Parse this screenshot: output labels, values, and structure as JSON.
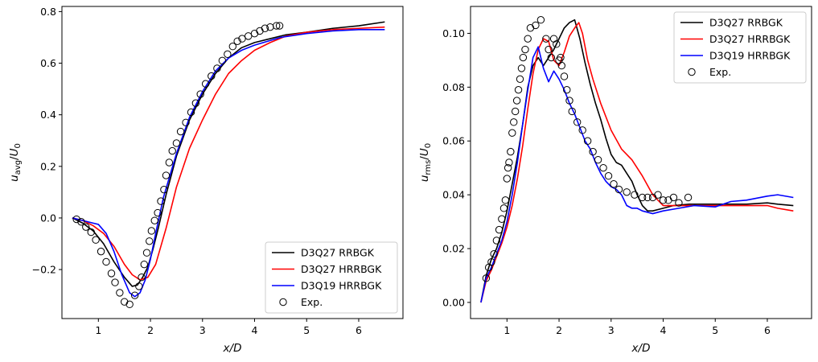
{
  "colors": {
    "rrbgk27": "#000000",
    "hrrbgk27": "#ff0000",
    "hrrbgk19": "#0000ff",
    "exp": "#000000"
  },
  "legend_labels": [
    "D3Q27 RRBGK",
    "D3Q27 HRRBGK",
    "D3Q19 HRRBGK",
    "Exp."
  ],
  "chart_data": [
    {
      "type": "line",
      "xlabel": "x/D",
      "ylabel": "u_avg/U_0",
      "xlim": [
        0.3,
        6.85
      ],
      "ylim": [
        -0.39,
        0.82
      ],
      "xticks": [
        1,
        2,
        3,
        4,
        5,
        6
      ],
      "yticks": [
        -0.2,
        0.0,
        0.2,
        0.4,
        0.6,
        0.8
      ],
      "xtick_labels": [
        "1",
        "2",
        "3",
        "4",
        "5",
        "6"
      ],
      "ytick_labels": [
        "−0.2",
        "0.0",
        "0.2",
        "0.4",
        "0.6",
        "0.8"
      ],
      "legend": "lower-right",
      "grid": false,
      "series": [
        {
          "name": "D3Q27 RRBGK",
          "style": "line",
          "color": "#000000",
          "x": [
            0.5,
            0.7,
            0.9,
            1.1,
            1.3,
            1.5,
            1.65,
            1.75,
            1.85,
            1.95,
            2.05,
            2.15,
            2.3,
            2.5,
            2.75,
            3.0,
            3.25,
            3.5,
            3.75,
            4.0,
            4.3,
            4.6,
            5.0,
            5.5,
            6.0,
            6.5
          ],
          "y": [
            0.0,
            -0.02,
            -0.05,
            -0.1,
            -0.17,
            -0.23,
            -0.265,
            -0.26,
            -0.23,
            -0.19,
            -0.12,
            -0.04,
            0.09,
            0.24,
            0.38,
            0.48,
            0.56,
            0.62,
            0.66,
            0.68,
            0.695,
            0.71,
            0.72,
            0.735,
            0.745,
            0.76
          ]
        },
        {
          "name": "D3Q27 HRRBGK",
          "style": "line",
          "color": "#ff0000",
          "x": [
            0.5,
            0.7,
            0.9,
            1.1,
            1.3,
            1.5,
            1.65,
            1.8,
            1.95,
            2.1,
            2.3,
            2.5,
            2.75,
            3.0,
            3.25,
            3.5,
            3.75,
            4.0,
            4.3,
            4.6,
            5.0,
            5.5,
            6.0,
            6.5
          ],
          "y": [
            0.0,
            -0.01,
            -0.03,
            -0.06,
            -0.11,
            -0.18,
            -0.22,
            -0.24,
            -0.23,
            -0.18,
            -0.04,
            0.12,
            0.27,
            0.38,
            0.48,
            0.56,
            0.61,
            0.65,
            0.68,
            0.705,
            0.72,
            0.73,
            0.735,
            0.74
          ]
        },
        {
          "name": "D3Q19 HRRBGK",
          "style": "line",
          "color": "#0000ff",
          "x": [
            0.5,
            0.7,
            0.9,
            1.0,
            1.15,
            1.3,
            1.45,
            1.6,
            1.7,
            1.8,
            1.9,
            2.0,
            2.1,
            2.25,
            2.5,
            2.75,
            3.0,
            3.25,
            3.5,
            3.75,
            4.0,
            4.5,
            5.0,
            5.5,
            6.0,
            6.5
          ],
          "y": [
            0.0,
            -0.01,
            -0.02,
            -0.025,
            -0.06,
            -0.13,
            -0.22,
            -0.29,
            -0.305,
            -0.29,
            -0.24,
            -0.16,
            -0.06,
            0.08,
            0.25,
            0.39,
            0.49,
            0.57,
            0.62,
            0.65,
            0.67,
            0.7,
            0.715,
            0.725,
            0.73,
            0.73
          ]
        },
        {
          "name": "Exp.",
          "style": "marker",
          "color": "#000000",
          "x": [
            0.58,
            0.67,
            0.76,
            0.86,
            0.95,
            1.05,
            1.15,
            1.25,
            1.32,
            1.41,
            1.5,
            1.6,
            1.7,
            1.78,
            1.83,
            1.88,
            1.93,
            1.98,
            2.02,
            2.08,
            2.14,
            2.2,
            2.26,
            2.3,
            2.36,
            2.42,
            2.5,
            2.58,
            2.68,
            2.78,
            2.87,
            2.96,
            3.06,
            3.17,
            3.28,
            3.38,
            3.48,
            3.58,
            3.67,
            3.76,
            3.88,
            4.0,
            4.1,
            4.2,
            4.3,
            4.42,
            4.48
          ],
          "y": [
            -0.005,
            -0.015,
            -0.035,
            -0.055,
            -0.085,
            -0.13,
            -0.17,
            -0.215,
            -0.25,
            -0.29,
            -0.325,
            -0.335,
            -0.3,
            -0.265,
            -0.23,
            -0.18,
            -0.135,
            -0.09,
            -0.05,
            -0.01,
            0.02,
            0.065,
            0.11,
            0.165,
            0.215,
            0.26,
            0.29,
            0.335,
            0.37,
            0.41,
            0.445,
            0.48,
            0.52,
            0.55,
            0.58,
            0.61,
            0.635,
            0.665,
            0.685,
            0.695,
            0.705,
            0.715,
            0.725,
            0.735,
            0.74,
            0.745,
            0.745
          ]
        }
      ]
    },
    {
      "type": "line",
      "xlabel": "x/D",
      "ylabel": "u_rms/U_0",
      "xlim": [
        0.3,
        6.85
      ],
      "ylim": [
        -0.006,
        0.11
      ],
      "xticks": [
        1,
        2,
        3,
        4,
        5,
        6
      ],
      "yticks": [
        0.0,
        0.02,
        0.04,
        0.06,
        0.08,
        0.1
      ],
      "xtick_labels": [
        "1",
        "2",
        "3",
        "4",
        "5",
        "6"
      ],
      "ytick_labels": [
        "0.00",
        "0.02",
        "0.04",
        "0.06",
        "0.08",
        "0.10"
      ],
      "legend": "upper-right",
      "grid": false,
      "series": [
        {
          "name": "D3Q27 RRBGK",
          "style": "line",
          "color": "#000000",
          "x": [
            0.5,
            0.6,
            0.7,
            0.8,
            0.9,
            1.0,
            1.1,
            1.2,
            1.3,
            1.4,
            1.5,
            1.6,
            1.7,
            1.8,
            1.9,
            2.0,
            2.1,
            2.2,
            2.3,
            2.4,
            2.5,
            2.6,
            2.7,
            2.8,
            2.9,
            3.0,
            3.1,
            3.2,
            3.3,
            3.4,
            3.5,
            3.6,
            3.7,
            3.8,
            4.0,
            4.2,
            4.5,
            4.8,
            5.0,
            5.3,
            5.6,
            6.0,
            6.2,
            6.5
          ],
          "y": [
            0.0,
            0.01,
            0.016,
            0.02,
            0.026,
            0.034,
            0.044,
            0.054,
            0.066,
            0.08,
            0.088,
            0.091,
            0.088,
            0.091,
            0.094,
            0.098,
            0.102,
            0.104,
            0.105,
            0.098,
            0.089,
            0.081,
            0.074,
            0.068,
            0.061,
            0.055,
            0.052,
            0.051,
            0.048,
            0.045,
            0.04,
            0.036,
            0.034,
            0.034,
            0.035,
            0.036,
            0.0365,
            0.0365,
            0.0365,
            0.0365,
            0.0365,
            0.037,
            0.0365,
            0.036
          ]
        },
        {
          "name": "D3Q27 HRRBGK",
          "style": "line",
          "color": "#ff0000",
          "x": [
            0.5,
            0.6,
            0.7,
            0.8,
            0.9,
            1.0,
            1.1,
            1.2,
            1.3,
            1.4,
            1.5,
            1.6,
            1.7,
            1.8,
            1.9,
            2.0,
            2.1,
            2.2,
            2.3,
            2.38,
            2.45,
            2.55,
            2.65,
            2.8,
            3.0,
            3.2,
            3.4,
            3.6,
            3.8,
            4.0,
            4.2,
            4.5,
            5.0,
            5.5,
            6.0,
            6.2,
            6.5
          ],
          "y": [
            0.0,
            0.008,
            0.012,
            0.017,
            0.022,
            0.028,
            0.036,
            0.046,
            0.058,
            0.072,
            0.085,
            0.094,
            0.098,
            0.097,
            0.09,
            0.088,
            0.093,
            0.099,
            0.102,
            0.104,
            0.1,
            0.09,
            0.083,
            0.074,
            0.064,
            0.057,
            0.053,
            0.047,
            0.04,
            0.036,
            0.036,
            0.036,
            0.036,
            0.036,
            0.036,
            0.035,
            0.034
          ]
        },
        {
          "name": "D3Q19 HRRBGK",
          "style": "line",
          "color": "#0000ff",
          "x": [
            0.5,
            0.6,
            0.7,
            0.8,
            0.9,
            1.0,
            1.1,
            1.2,
            1.3,
            1.4,
            1.5,
            1.6,
            1.7,
            1.8,
            1.9,
            2.0,
            2.1,
            2.2,
            2.3,
            2.4,
            2.5,
            2.6,
            2.7,
            2.8,
            2.9,
            3.0,
            3.1,
            3.2,
            3.3,
            3.4,
            3.5,
            3.6,
            3.8,
            4.0,
            4.3,
            4.6,
            5.0,
            5.3,
            5.6,
            6.0,
            6.2,
            6.5
          ],
          "y": [
            0.0,
            0.009,
            0.013,
            0.018,
            0.023,
            0.03,
            0.04,
            0.052,
            0.066,
            0.079,
            0.091,
            0.095,
            0.087,
            0.082,
            0.086,
            0.083,
            0.079,
            0.074,
            0.07,
            0.065,
            0.06,
            0.057,
            0.052,
            0.048,
            0.045,
            0.043,
            0.042,
            0.04,
            0.036,
            0.035,
            0.035,
            0.034,
            0.033,
            0.034,
            0.035,
            0.036,
            0.0355,
            0.0375,
            0.038,
            0.0395,
            0.04,
            0.039
          ]
        },
        {
          "name": "Exp.",
          "style": "marker",
          "color": "#000000",
          "x": [
            0.6,
            0.65,
            0.7,
            0.75,
            0.8,
            0.85,
            0.9,
            0.94,
            0.97,
            1.0,
            1.02,
            1.04,
            1.07,
            1.1,
            1.13,
            1.16,
            1.19,
            1.22,
            1.25,
            1.28,
            1.31,
            1.35,
            1.4,
            1.45,
            1.55,
            1.65,
            1.75,
            1.8,
            1.85,
            1.9,
            1.95,
            2.0,
            2.03,
            2.05,
            2.1,
            2.15,
            2.2,
            2.25,
            2.35,
            2.45,
            2.55,
            2.65,
            2.75,
            2.85,
            2.95,
            3.05,
            3.15,
            3.3,
            3.45,
            3.6,
            3.7,
            3.8,
            3.9,
            4.0,
            4.1,
            4.2,
            4.3,
            4.48
          ],
          "y": [
            0.009,
            0.013,
            0.015,
            0.018,
            0.023,
            0.027,
            0.031,
            0.035,
            0.038,
            0.046,
            0.05,
            0.052,
            0.056,
            0.063,
            0.067,
            0.071,
            0.075,
            0.079,
            0.083,
            0.087,
            0.091,
            0.094,
            0.098,
            0.102,
            0.103,
            0.105,
            0.098,
            0.094,
            0.091,
            0.098,
            0.096,
            0.09,
            0.091,
            0.088,
            0.084,
            0.079,
            0.075,
            0.071,
            0.067,
            0.064,
            0.06,
            0.056,
            0.053,
            0.05,
            0.047,
            0.044,
            0.042,
            0.041,
            0.04,
            0.039,
            0.039,
            0.039,
            0.04,
            0.038,
            0.038,
            0.039,
            0.037,
            0.039
          ]
        }
      ]
    }
  ]
}
